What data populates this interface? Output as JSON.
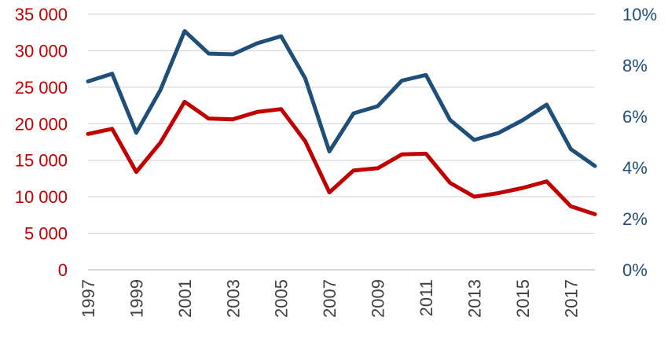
{
  "chart_data": {
    "type": "line",
    "x": [
      1997,
      1998,
      1999,
      2000,
      2001,
      2002,
      2003,
      2004,
      2005,
      2006,
      2007,
      2008,
      2009,
      2010,
      2011,
      2012,
      2013,
      2014,
      2015,
      2016,
      2017,
      2018
    ],
    "x_tick_labels": [
      "1997",
      "1999",
      "2001",
      "2003",
      "2005",
      "2007",
      "2009",
      "2011",
      "2013",
      "2015",
      "2017"
    ],
    "y_left": {
      "ylim": [
        0,
        35000
      ],
      "tick_labels": [
        "0",
        "5 000",
        "10 000",
        "15 000",
        "20 000",
        "25 000",
        "30 000",
        "35 000"
      ],
      "color": "#c00000"
    },
    "y_right": {
      "ylim": [
        0,
        0.1
      ],
      "tick_labels": [
        "0%",
        "2%",
        "4%",
        "6%",
        "8%",
        "10%"
      ],
      "color": "#1f4e79"
    },
    "series": [
      {
        "axis": "left",
        "color": "#c00000",
        "values": [
          18600,
          19300,
          13400,
          17400,
          23000,
          20700,
          20600,
          21600,
          22000,
          17600,
          10600,
          13600,
          13900,
          15800,
          15900,
          11900,
          10000,
          10500,
          11200,
          12100,
          8700,
          7600
        ]
      },
      {
        "axis": "right",
        "color": "#1f4e79",
        "values": [
          0.0737,
          0.0767,
          0.0536,
          0.0703,
          0.0934,
          0.0846,
          0.0843,
          0.0886,
          0.0914,
          0.0749,
          0.0463,
          0.0612,
          0.064,
          0.074,
          0.0762,
          0.0586,
          0.0508,
          0.0535,
          0.0585,
          0.0646,
          0.0472,
          0.0406
        ]
      }
    ],
    "grid": true,
    "legend": "none"
  }
}
